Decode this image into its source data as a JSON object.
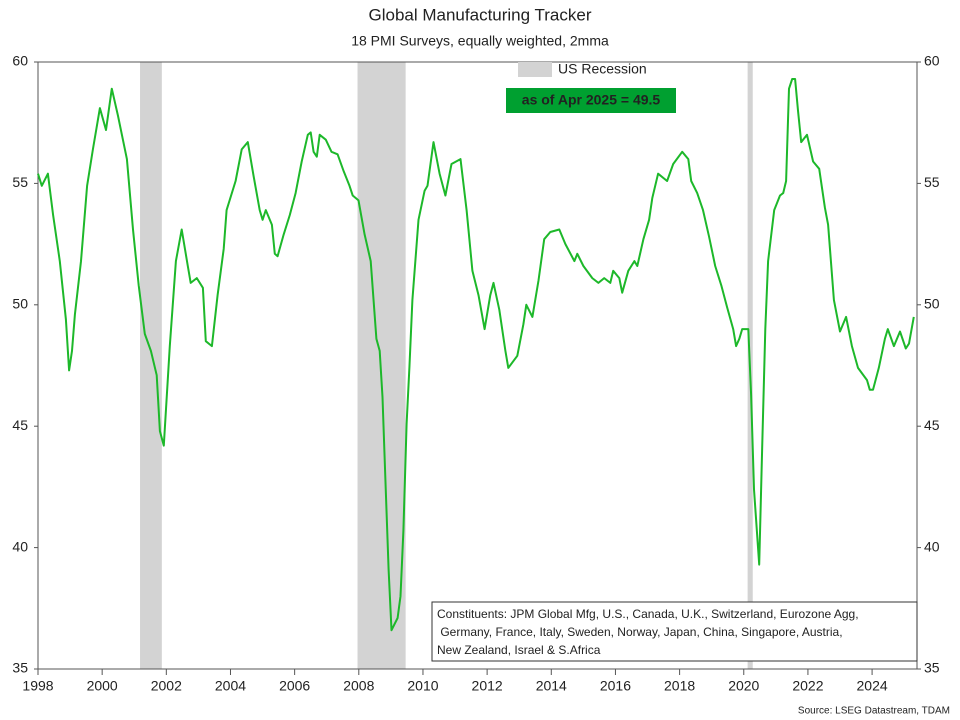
{
  "chart_data": {
    "type": "line",
    "title": "Global Manufacturing Tracker",
    "subtitle": "18 PMI Surveys, equally weighted, 2mma",
    "annotation": "as of Apr 2025 = 49.5",
    "annotation_color": "#00a030",
    "constituents": [
      "Constituents: JPM Global Mfg, U.S., Canada, U.K., Switzerland, Eurozone Agg,",
      " Germany, France, Italy, Sweden, Norway, Japan, China, Singapore, Austria,",
      "New Zealand, Israel & S.Africa"
    ],
    "source": "Source: LSEG Datastream, TDAM",
    "recession_name": "US Recession",
    "recession_color": "#d3d3d3",
    "recessions": [
      [
        2001.18,
        2001.86
      ],
      [
        2007.96,
        2009.46
      ],
      [
        2020.12,
        2020.28
      ]
    ],
    "xlim": [
      1998,
      2025.4
    ],
    "xticks": [
      1998,
      2000,
      2002,
      2004,
      2006,
      2008,
      2010,
      2012,
      2014,
      2016,
      2018,
      2020,
      2022,
      2024
    ],
    "ylim": [
      35,
      60
    ],
    "yticks": [
      35,
      40,
      45,
      50,
      55,
      60
    ],
    "x": [
      1998.0,
      1998.12,
      1998.31,
      1998.47,
      1998.68,
      1998.87,
      1998.97,
      1999.06,
      1999.15,
      1999.34,
      1999.53,
      1999.71,
      1999.93,
      2000.12,
      2000.3,
      2000.49,
      2000.77,
      2000.96,
      2001.14,
      2001.33,
      2001.52,
      2001.7,
      2001.8,
      2001.92,
      2002.11,
      2002.3,
      2002.48,
      2002.67,
      2002.76,
      2002.95,
      2003.14,
      2003.23,
      2003.42,
      2003.6,
      2003.79,
      2003.88,
      2004.16,
      2004.35,
      2004.54,
      2004.72,
      2004.91,
      2005.0,
      2005.1,
      2005.29,
      2005.38,
      2005.47,
      2005.66,
      2005.85,
      2006.03,
      2006.22,
      2006.41,
      2006.5,
      2006.59,
      2006.69,
      2006.78,
      2006.97,
      2007.15,
      2007.34,
      2007.53,
      2007.71,
      2007.81,
      2007.99,
      2008.18,
      2008.37,
      2008.55,
      2008.65,
      2008.74,
      2008.83,
      2008.93,
      2009.02,
      2009.21,
      2009.3,
      2009.39,
      2009.49,
      2009.58,
      2009.67,
      2009.86,
      2010.05,
      2010.14,
      2010.33,
      2010.52,
      2010.7,
      2010.89,
      2011.17,
      2011.36,
      2011.54,
      2011.73,
      2011.92,
      2012.1,
      2012.2,
      2012.38,
      2012.57,
      2012.66,
      2012.94,
      2013.13,
      2013.22,
      2013.41,
      2013.6,
      2013.78,
      2013.97,
      2014.25,
      2014.44,
      2014.72,
      2014.81,
      2015.0,
      2015.28,
      2015.47,
      2015.65,
      2015.84,
      2015.93,
      2016.12,
      2016.21,
      2016.4,
      2016.59,
      2016.68,
      2016.87,
      2017.05,
      2017.15,
      2017.33,
      2017.61,
      2017.8,
      2018.08,
      2018.27,
      2018.36,
      2018.55,
      2018.73,
      2018.92,
      2019.11,
      2019.3,
      2019.48,
      2019.67,
      2019.76,
      2019.86,
      2019.95,
      2020.14,
      2020.23,
      2020.32,
      2020.48,
      2020.57,
      2020.67,
      2020.76,
      2020.95,
      2021.13,
      2021.23,
      2021.32,
      2021.41,
      2021.51,
      2021.6,
      2021.69,
      2021.79,
      2021.97,
      2022.16,
      2022.35,
      2022.53,
      2022.63,
      2022.81,
      2023.0,
      2023.19,
      2023.37,
      2023.56,
      2023.84,
      2023.93,
      2024.03,
      2024.21,
      2024.4,
      2024.49,
      2024.68,
      2024.87,
      2025.05,
      2025.15,
      2025.3
    ],
    "series": [
      {
        "name": "Global Manufacturing Tracker",
        "color": "#1db82a",
        "values": [
          55.4,
          54.9,
          55.4,
          53.7,
          51.8,
          49.4,
          47.3,
          48.1,
          49.6,
          51.8,
          54.9,
          56.4,
          58.1,
          57.2,
          58.9,
          57.8,
          56.0,
          53.1,
          50.8,
          48.8,
          48.1,
          47.1,
          44.8,
          44.2,
          48.3,
          51.8,
          53.1,
          51.6,
          50.9,
          51.1,
          50.7,
          48.5,
          48.3,
          50.4,
          52.3,
          53.9,
          55.1,
          56.4,
          56.7,
          55.3,
          53.9,
          53.5,
          53.9,
          53.3,
          52.1,
          52.0,
          52.9,
          53.7,
          54.6,
          55.9,
          57.0,
          57.1,
          56.3,
          56.1,
          57.0,
          56.8,
          56.3,
          56.2,
          55.5,
          54.9,
          54.5,
          54.3,
          52.9,
          51.8,
          48.6,
          48.1,
          46.2,
          42.8,
          39.1,
          36.6,
          37.1,
          38.0,
          40.7,
          45.1,
          47.5,
          50.2,
          53.5,
          54.7,
          54.9,
          56.7,
          55.4,
          54.5,
          55.8,
          56.0,
          53.9,
          51.4,
          50.4,
          49.0,
          50.4,
          50.9,
          49.8,
          48.1,
          47.4,
          47.9,
          49.2,
          50.0,
          49.5,
          51.0,
          52.7,
          53.0,
          53.1,
          52.5,
          51.8,
          52.1,
          51.6,
          51.1,
          50.9,
          51.1,
          50.9,
          51.4,
          51.1,
          50.5,
          51.4,
          51.8,
          51.6,
          52.7,
          53.5,
          54.4,
          55.4,
          55.1,
          55.8,
          56.3,
          56.0,
          55.1,
          54.6,
          53.9,
          52.8,
          51.6,
          50.8,
          49.9,
          49.0,
          48.3,
          48.6,
          49.0,
          49.0,
          46.3,
          42.4,
          39.3,
          44.0,
          49.0,
          51.8,
          53.9,
          54.5,
          54.6,
          55.1,
          58.9,
          59.3,
          59.3,
          58.0,
          56.7,
          57.0,
          55.9,
          55.6,
          54.0,
          53.3,
          50.2,
          48.9,
          49.5,
          48.3,
          47.4,
          46.9,
          46.5,
          46.5,
          47.4,
          48.6,
          49.0,
          48.3,
          48.9,
          48.2,
          48.4,
          49.5
        ]
      }
    ]
  }
}
